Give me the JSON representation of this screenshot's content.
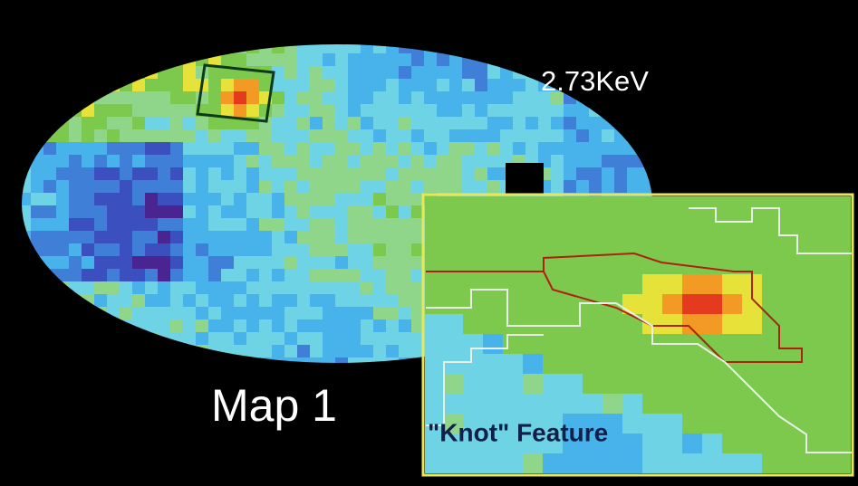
{
  "labels": {
    "energy": "2.73KeV",
    "map": "Map 1",
    "inset": "\"Knot\" Feature"
  }
}
